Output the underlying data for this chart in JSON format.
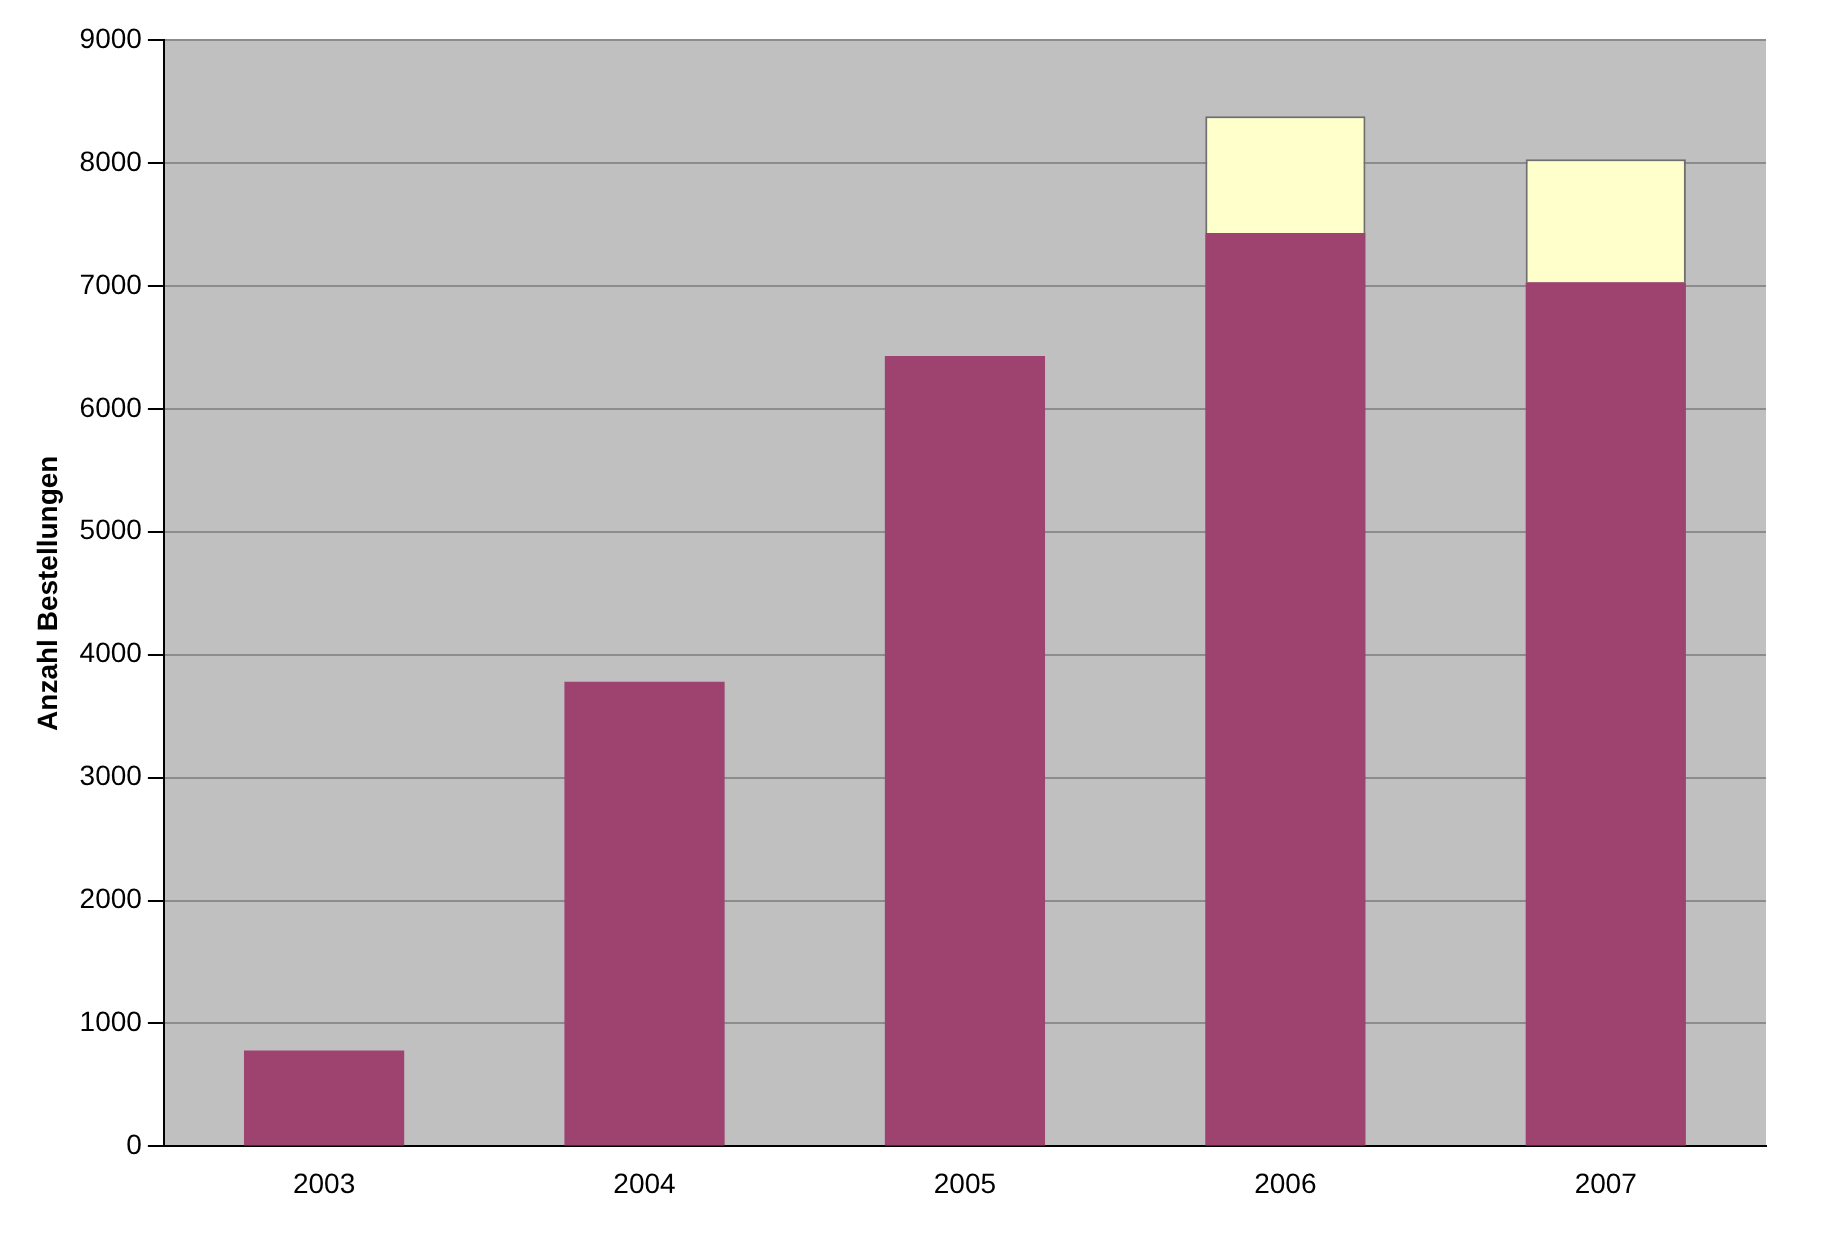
{
  "chart_data": {
    "type": "bar",
    "stacked": true,
    "ylabel": "Anzahl Bestellungen",
    "categories": [
      "2003",
      "2004",
      "2005",
      "2006",
      "2007"
    ],
    "series": [
      {
        "color": "#9e426f",
        "values": [
          780,
          3780,
          6430,
          7430,
          7030
        ]
      },
      {
        "color": "#ffffcc",
        "values": [
          0,
          0,
          0,
          950,
          1000
        ]
      }
    ],
    "ylim": [
      0,
      9000
    ],
    "yticks": [
      0,
      1000,
      2000,
      3000,
      4000,
      5000,
      6000,
      7000,
      8000,
      9000
    ],
    "grid": "y",
    "legend": false
  }
}
